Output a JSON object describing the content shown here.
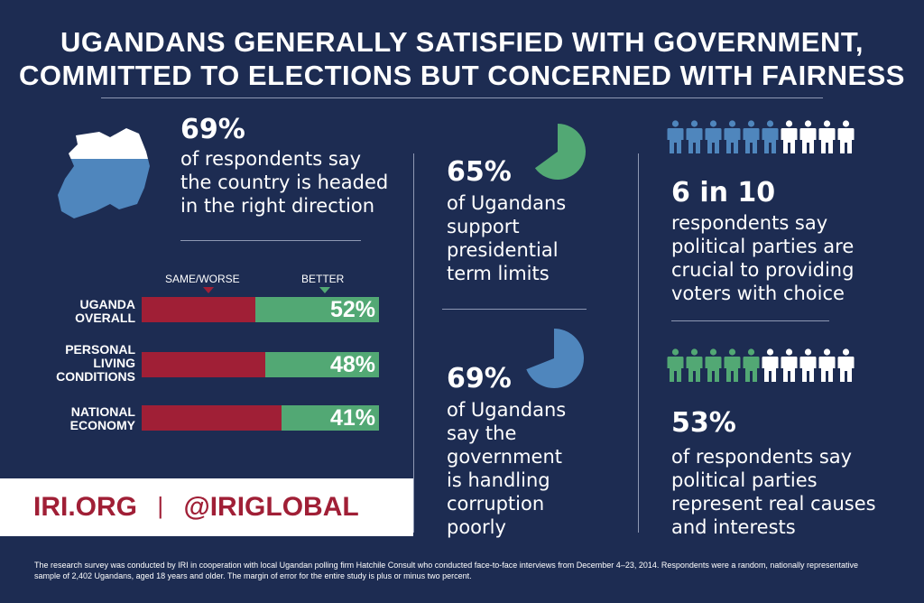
{
  "title": {
    "line1": "UGANDANS GENERALLY SATISFIED WITH GOVERNMENT,",
    "line2": "COMMITTED TO ELECTIONS BUT CONCERNED WITH FAIRNESS"
  },
  "colors": {
    "background": "#1d2c52",
    "red": "#a01f36",
    "green": "#52a874",
    "blue": "#4f86bd",
    "white": "#ffffff"
  },
  "direction": {
    "stat": "69%",
    "line1": "of respondents say",
    "line2": "the country is headed",
    "line3": "in the right direction",
    "icon": "uganda-map-icon"
  },
  "legend": {
    "worse_label": "SAME/WORSE",
    "better_label": "BETTER"
  },
  "chart_data": {
    "type": "bar",
    "orientation": "horizontal",
    "stacked": true,
    "categories": [
      [
        "UGANDA",
        "OVERALL"
      ],
      [
        "PERSONAL",
        "LIVING",
        "CONDITIONS"
      ],
      [
        "NATIONAL",
        "ECONOMY"
      ]
    ],
    "series": [
      {
        "name": "BETTER",
        "values": [
          52,
          48,
          41
        ],
        "labels": [
          "52%",
          "48%",
          "41%"
        ]
      }
    ],
    "xlim": [
      0,
      100
    ]
  },
  "term_limits": {
    "stat": "65%",
    "lines": [
      "of Ugandans",
      "support",
      "presidential",
      "term limits"
    ],
    "value": 0.65
  },
  "corruption": {
    "stat": "69%",
    "lines": [
      "of Ugandans",
      "say the",
      "government",
      "is handling",
      "corruption",
      "poorly"
    ],
    "value": 0.69
  },
  "parties_choice": {
    "stat": "6 in 10",
    "lines": [
      "respondents say",
      "political parties are",
      "crucial to providing",
      "voters with choice"
    ],
    "filled": 6,
    "total": 10
  },
  "parties_causes": {
    "stat": "53%",
    "lines": [
      "of respondents say",
      "political parties",
      "represent real causes",
      "and interests"
    ],
    "filled": 5,
    "total": 10
  },
  "footer": {
    "site": "IRI.ORG",
    "separator": "|",
    "handle": "@IRIGLOBAL"
  },
  "footnote": {
    "line1": "The research survey was conducted by IRI in cooperation with local Ugandan polling firm Hatchile Consult who conducted face-to-face interviews from December 4–23, 2014. Respondents were a random, nationally representative",
    "line2": "sample of 2,402 Ugandans, aged 18 years and older.  The margin of error for the entire study is plus or minus two percent."
  }
}
